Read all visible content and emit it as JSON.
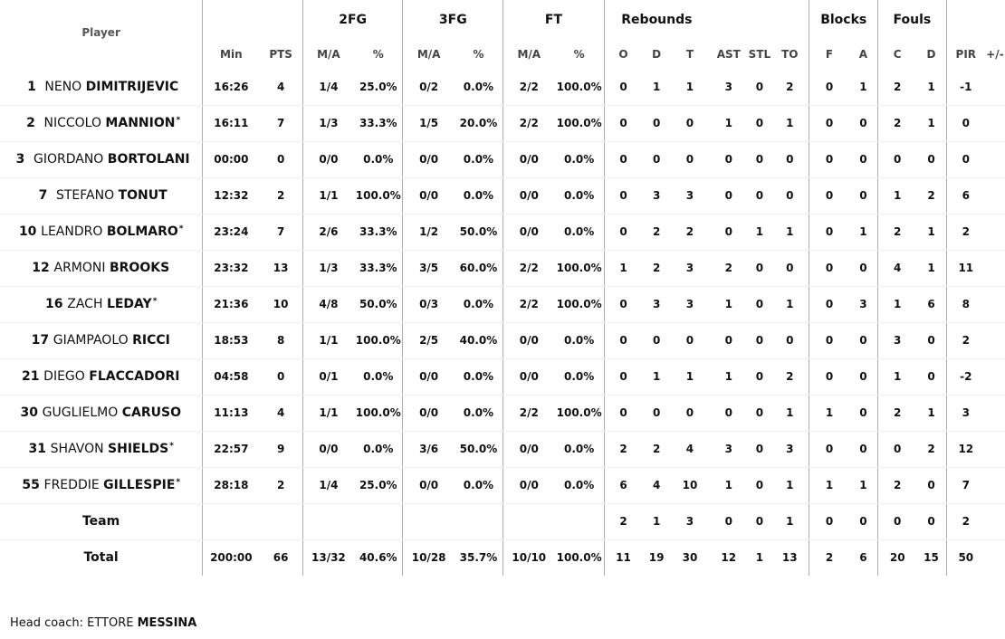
{
  "header": {
    "groups": {
      "fg2": "2FG",
      "fg3": "3FG",
      "ft": "FT",
      "reb": "Rebounds",
      "blk": "Blocks",
      "fouls": "Fouls"
    },
    "columns": {
      "player": "Player",
      "min": "Min",
      "pts": "PTS",
      "fg2_ma": "M/A",
      "fg2_pct": "%",
      "fg3_ma": "M/A",
      "fg3_pct": "%",
      "ft_ma": "M/A",
      "ft_pct": "%",
      "reb_o": "O",
      "reb_d": "D",
      "reb_t": "T",
      "ast": "AST",
      "stl": "STL",
      "to": "TO",
      "blk_f": "F",
      "blk_a": "A",
      "foul_c": "C",
      "foul_d": "D",
      "pir": "PIR",
      "pm": "+/-"
    }
  },
  "players": [
    {
      "number": "1",
      "first": "NENO",
      "last": "DIMITRIJEVIC",
      "star": "",
      "min": "16:26",
      "pts": "4",
      "fg2_ma": "1/4",
      "fg2_pct": "25.0%",
      "fg3_ma": "0/2",
      "fg3_pct": "0.0%",
      "ft_ma": "2/2",
      "ft_pct": "100.0%",
      "reb_o": "0",
      "reb_d": "1",
      "reb_t": "1",
      "ast": "3",
      "stl": "0",
      "to": "2",
      "blk_f": "0",
      "blk_a": "1",
      "foul_c": "2",
      "foul_d": "1",
      "pir": "-1",
      "pm": ""
    },
    {
      "number": "2",
      "first": "NICCOLO",
      "last": "MANNION",
      "star": "*",
      "min": "16:11",
      "pts": "7",
      "fg2_ma": "1/3",
      "fg2_pct": "33.3%",
      "fg3_ma": "1/5",
      "fg3_pct": "20.0%",
      "ft_ma": "2/2",
      "ft_pct": "100.0%",
      "reb_o": "0",
      "reb_d": "0",
      "reb_t": "0",
      "ast": "1",
      "stl": "0",
      "to": "1",
      "blk_f": "0",
      "blk_a": "0",
      "foul_c": "2",
      "foul_d": "1",
      "pir": "0",
      "pm": ""
    },
    {
      "number": "3",
      "first": "GIORDANO",
      "last": "BORTOLANI",
      "star": "",
      "min": "00:00",
      "pts": "0",
      "fg2_ma": "0/0",
      "fg2_pct": "0.0%",
      "fg3_ma": "0/0",
      "fg3_pct": "0.0%",
      "ft_ma": "0/0",
      "ft_pct": "0.0%",
      "reb_o": "0",
      "reb_d": "0",
      "reb_t": "0",
      "ast": "0",
      "stl": "0",
      "to": "0",
      "blk_f": "0",
      "blk_a": "0",
      "foul_c": "0",
      "foul_d": "0",
      "pir": "0",
      "pm": ""
    },
    {
      "number": "7",
      "first": "STEFANO",
      "last": "TONUT",
      "star": "",
      "min": "12:32",
      "pts": "2",
      "fg2_ma": "1/1",
      "fg2_pct": "100.0%",
      "fg3_ma": "0/0",
      "fg3_pct": "0.0%",
      "ft_ma": "0/0",
      "ft_pct": "0.0%",
      "reb_o": "0",
      "reb_d": "3",
      "reb_t": "3",
      "ast": "0",
      "stl": "0",
      "to": "0",
      "blk_f": "0",
      "blk_a": "0",
      "foul_c": "1",
      "foul_d": "2",
      "pir": "6",
      "pm": ""
    },
    {
      "number": "10",
      "first": "LEANDRO",
      "last": "BOLMARO",
      "star": "*",
      "min": "23:24",
      "pts": "7",
      "fg2_ma": "2/6",
      "fg2_pct": "33.3%",
      "fg3_ma": "1/2",
      "fg3_pct": "50.0%",
      "ft_ma": "0/0",
      "ft_pct": "0.0%",
      "reb_o": "0",
      "reb_d": "2",
      "reb_t": "2",
      "ast": "0",
      "stl": "1",
      "to": "1",
      "blk_f": "0",
      "blk_a": "1",
      "foul_c": "2",
      "foul_d": "1",
      "pir": "2",
      "pm": ""
    },
    {
      "number": "12",
      "first": "ARMONI",
      "last": "BROOKS",
      "star": "",
      "min": "23:32",
      "pts": "13",
      "fg2_ma": "1/3",
      "fg2_pct": "33.3%",
      "fg3_ma": "3/5",
      "fg3_pct": "60.0%",
      "ft_ma": "2/2",
      "ft_pct": "100.0%",
      "reb_o": "1",
      "reb_d": "2",
      "reb_t": "3",
      "ast": "2",
      "stl": "0",
      "to": "0",
      "blk_f": "0",
      "blk_a": "0",
      "foul_c": "4",
      "foul_d": "1",
      "pir": "11",
      "pm": ""
    },
    {
      "number": "16",
      "first": "ZACH",
      "last": "LEDAY",
      "star": "*",
      "min": "21:36",
      "pts": "10",
      "fg2_ma": "4/8",
      "fg2_pct": "50.0%",
      "fg3_ma": "0/3",
      "fg3_pct": "0.0%",
      "ft_ma": "2/2",
      "ft_pct": "100.0%",
      "reb_o": "0",
      "reb_d": "3",
      "reb_t": "3",
      "ast": "1",
      "stl": "0",
      "to": "1",
      "blk_f": "0",
      "blk_a": "3",
      "foul_c": "1",
      "foul_d": "6",
      "pir": "8",
      "pm": ""
    },
    {
      "number": "17",
      "first": "GIAMPAOLO",
      "last": "RICCI",
      "star": "",
      "min": "18:53",
      "pts": "8",
      "fg2_ma": "1/1",
      "fg2_pct": "100.0%",
      "fg3_ma": "2/5",
      "fg3_pct": "40.0%",
      "ft_ma": "0/0",
      "ft_pct": "0.0%",
      "reb_o": "0",
      "reb_d": "0",
      "reb_t": "0",
      "ast": "0",
      "stl": "0",
      "to": "0",
      "blk_f": "0",
      "blk_a": "0",
      "foul_c": "3",
      "foul_d": "0",
      "pir": "2",
      "pm": ""
    },
    {
      "number": "21",
      "first": "DIEGO",
      "last": "FLACCADORI",
      "star": "",
      "min": "04:58",
      "pts": "0",
      "fg2_ma": "0/1",
      "fg2_pct": "0.0%",
      "fg3_ma": "0/0",
      "fg3_pct": "0.0%",
      "ft_ma": "0/0",
      "ft_pct": "0.0%",
      "reb_o": "0",
      "reb_d": "1",
      "reb_t": "1",
      "ast": "1",
      "stl": "0",
      "to": "2",
      "blk_f": "0",
      "blk_a": "0",
      "foul_c": "1",
      "foul_d": "0",
      "pir": "-2",
      "pm": ""
    },
    {
      "number": "30",
      "first": "GUGLIELMO",
      "last": "CARUSO",
      "star": "",
      "min": "11:13",
      "pts": "4",
      "fg2_ma": "1/1",
      "fg2_pct": "100.0%",
      "fg3_ma": "0/0",
      "fg3_pct": "0.0%",
      "ft_ma": "2/2",
      "ft_pct": "100.0%",
      "reb_o": "0",
      "reb_d": "0",
      "reb_t": "0",
      "ast": "0",
      "stl": "0",
      "to": "1",
      "blk_f": "1",
      "blk_a": "0",
      "foul_c": "2",
      "foul_d": "1",
      "pir": "3",
      "pm": ""
    },
    {
      "number": "31",
      "first": "SHAVON",
      "last": "SHIELDS",
      "star": "*",
      "min": "22:57",
      "pts": "9",
      "fg2_ma": "0/0",
      "fg2_pct": "0.0%",
      "fg3_ma": "3/6",
      "fg3_pct": "50.0%",
      "ft_ma": "0/0",
      "ft_pct": "0.0%",
      "reb_o": "2",
      "reb_d": "2",
      "reb_t": "4",
      "ast": "3",
      "stl": "0",
      "to": "3",
      "blk_f": "0",
      "blk_a": "0",
      "foul_c": "0",
      "foul_d": "2",
      "pir": "12",
      "pm": ""
    },
    {
      "number": "55",
      "first": "FREDDIE",
      "last": "GILLESPIE",
      "star": "*",
      "min": "28:18",
      "pts": "2",
      "fg2_ma": "1/4",
      "fg2_pct": "25.0%",
      "fg3_ma": "0/0",
      "fg3_pct": "0.0%",
      "ft_ma": "0/0",
      "ft_pct": "0.0%",
      "reb_o": "6",
      "reb_d": "4",
      "reb_t": "10",
      "ast": "1",
      "stl": "0",
      "to": "1",
      "blk_f": "1",
      "blk_a": "1",
      "foul_c": "2",
      "foul_d": "0",
      "pir": "7",
      "pm": ""
    }
  ],
  "team": {
    "label": "Team",
    "min": "",
    "pts": "",
    "fg2_ma": "",
    "fg2_pct": "",
    "fg3_ma": "",
    "fg3_pct": "",
    "ft_ma": "",
    "ft_pct": "",
    "reb_o": "2",
    "reb_d": "1",
    "reb_t": "3",
    "ast": "0",
    "stl": "0",
    "to": "1",
    "blk_f": "0",
    "blk_a": "0",
    "foul_c": "0",
    "foul_d": "0",
    "pir": "2",
    "pm": ""
  },
  "total": {
    "label": "Total",
    "min": "200:00",
    "pts": "66",
    "fg2_ma": "13/32",
    "fg2_pct": "40.6%",
    "fg3_ma": "10/28",
    "fg3_pct": "35.7%",
    "ft_ma": "10/10",
    "ft_pct": "100.0%",
    "reb_o": "11",
    "reb_d": "19",
    "reb_t": "30",
    "ast": "12",
    "stl": "1",
    "to": "13",
    "blk_f": "2",
    "blk_a": "6",
    "foul_c": "20",
    "foul_d": "15",
    "pir": "50",
    "pm": ""
  },
  "coach": {
    "label": "Head coach:",
    "first": "ETTORE",
    "last": "MESSINA"
  }
}
